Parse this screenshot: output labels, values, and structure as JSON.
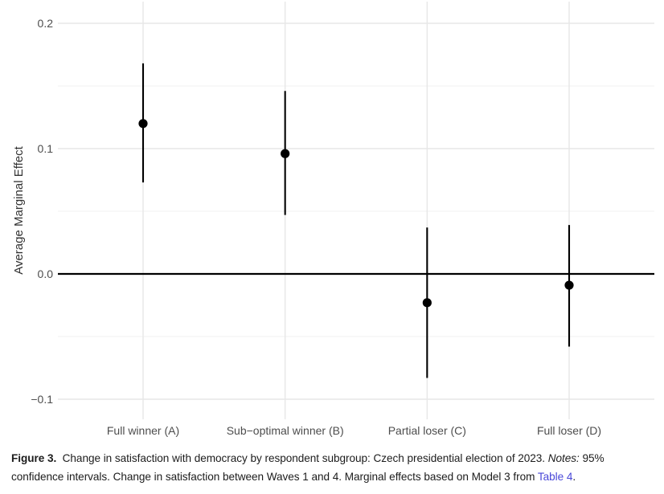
{
  "chart_data": {
    "type": "scatter",
    "subtype": "coefficient-plot-point-range",
    "title": "",
    "xlabel": "",
    "ylabel": "Average Marginal Effect",
    "categories": [
      "Full winner (A)",
      "Sub−optimal winner (B)",
      "Partial loser (C)",
      "Full loser (D)"
    ],
    "series": [
      {
        "name": "Average Marginal Effect (Model 3)",
        "values": [
          0.12,
          0.096,
          -0.023,
          -0.009
        ],
        "ci_low": [
          0.073,
          0.047,
          -0.083,
          -0.058
        ],
        "ci_high": [
          0.168,
          0.146,
          0.037,
          0.039
        ]
      }
    ],
    "yticks": {
      "values": [
        0.2,
        0.1,
        0.0,
        -0.1
      ],
      "labels": [
        "0.2",
        "0.1",
        "0.0",
        "−0.1"
      ]
    },
    "minor_grid_values": [
      0.15,
      0.05,
      -0.05
    ],
    "ylim": [
      -0.116,
      0.216
    ],
    "zero_reference_line": 0.0,
    "grid": "horizontal major+minor, vertical at categories",
    "legend": "none"
  },
  "caption": {
    "lines": [
      [
        {
          "text": "Figure 3.",
          "style": "bold"
        },
        {
          "text": "  Change in satisfaction with democracy by respondent subgroup: Czech presidential election of 2023. ",
          "style": "normal"
        },
        {
          "text": "Notes:",
          "style": "italic"
        },
        {
          "text": " 95%",
          "style": "normal"
        }
      ],
      [
        {
          "text": "confidence intervals. Change in satisfaction between Waves 1 and 4. Marginal effects based on Model 3 from ",
          "style": "normal"
        },
        {
          "text": "Table 4",
          "style": "link"
        },
        {
          "text": ".",
          "style": "normal"
        }
      ]
    ]
  },
  "colors": {
    "background": "#ffffff",
    "point": "#000000",
    "ci_line": "#000000",
    "zero_line": "#000000",
    "grid_major": "#e7e7e7",
    "grid_minor": "#f0f0f0",
    "tick_label": "#4d4d4d",
    "axis_title": "#333333",
    "caption_text": "#1c1c1c",
    "link": "#4a48d8"
  }
}
